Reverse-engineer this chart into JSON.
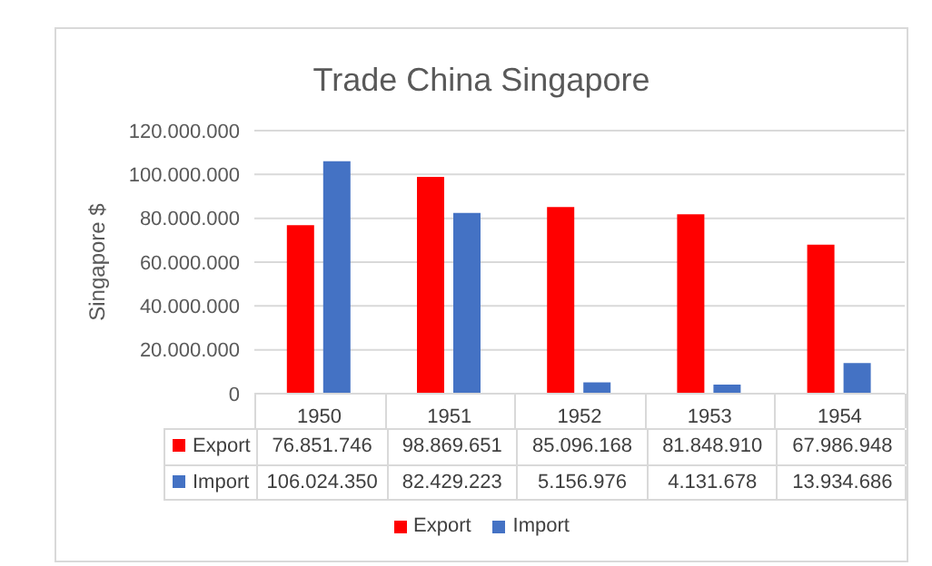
{
  "chart_data": {
    "type": "bar",
    "title": "Trade China Singapore",
    "ylabel": "Singapore $",
    "categories": [
      "1950",
      "1951",
      "1952",
      "1953",
      "1954"
    ],
    "series": [
      {
        "name": "Export",
        "color": "#ff0000",
        "values": [
          76851746,
          98869651,
          85096168,
          81848910,
          67986948
        ],
        "value_labels": [
          "76.851.746",
          "98.869.651",
          "85.096.168",
          "81.848.910",
          "67.986.948"
        ]
      },
      {
        "name": "Import",
        "color": "#4472c4",
        "values": [
          106024350,
          82429223,
          5156976,
          4131678,
          13934686
        ],
        "value_labels": [
          "106.024.350",
          "82.429.223",
          "5.156.976",
          "4.131.678",
          "13.934.686"
        ]
      }
    ],
    "ylim": [
      0,
      120000000
    ],
    "yticks": [
      0,
      {
        "value": 20000000,
        "label": "20.000.000"
      },
      {
        "value": 40000000,
        "label": "40.000.000"
      },
      {
        "value": 60000000,
        "label": "60.000.000"
      },
      {
        "value": 80000000,
        "label": "80.000.000"
      },
      {
        "value": 100000000,
        "label": "100.000.000"
      },
      {
        "value": 120000000,
        "label": "120.000.000"
      }
    ],
    "grid": "y",
    "legend": "bottom"
  }
}
